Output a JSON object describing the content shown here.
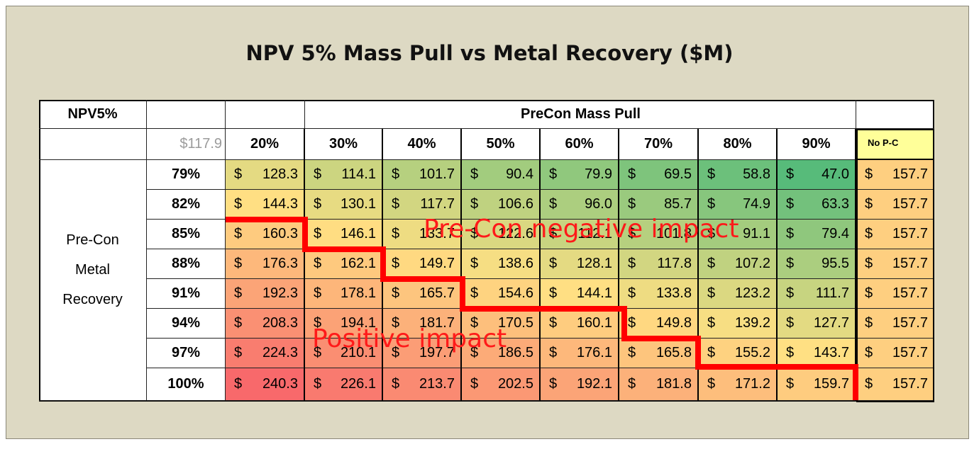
{
  "title": "NPV 5% Mass Pull vs Metal Recovery ($M)",
  "chart_data": {
    "type": "table",
    "corner_label": "NPV5%",
    "column_group_label": "PreCon Mass Pull",
    "baseline_value": "$117.9",
    "row_axis_label": [
      "Pre-Con",
      "Metal",
      "Recovery"
    ],
    "columns": [
      "20%",
      "30%",
      "40%",
      "50%",
      "60%",
      "70%",
      "80%",
      "90%"
    ],
    "no_precon_label": "No P-C",
    "rows": [
      {
        "label": "79%",
        "values": [
          "128.3",
          "114.1",
          "101.7",
          "90.4",
          "79.9",
          "69.5",
          "58.8",
          "47.0"
        ],
        "nopc": "157.7"
      },
      {
        "label": "82%",
        "values": [
          "144.3",
          "130.1",
          "117.7",
          "106.6",
          "96.0",
          "85.7",
          "74.9",
          "63.3"
        ],
        "nopc": "157.7"
      },
      {
        "label": "85%",
        "values": [
          "160.3",
          "146.1",
          "133.7",
          "122.6",
          "112.1",
          "101.8",
          "91.1",
          "79.4"
        ],
        "nopc": "157.7"
      },
      {
        "label": "88%",
        "values": [
          "176.3",
          "162.1",
          "149.7",
          "138.6",
          "128.1",
          "117.8",
          "107.2",
          "95.5"
        ],
        "nopc": "157.7"
      },
      {
        "label": "91%",
        "values": [
          "192.3",
          "178.1",
          "165.7",
          "154.6",
          "144.1",
          "133.8",
          "123.2",
          "111.7"
        ],
        "nopc": "157.7"
      },
      {
        "label": "94%",
        "values": [
          "208.3",
          "194.1",
          "181.7",
          "170.5",
          "160.1",
          "149.8",
          "139.2",
          "127.7"
        ],
        "nopc": "157.7"
      },
      {
        "label": "97%",
        "values": [
          "224.3",
          "210.1",
          "197.7",
          "186.5",
          "176.1",
          "165.8",
          "155.2",
          "143.7"
        ],
        "nopc": "157.7"
      },
      {
        "label": "100%",
        "values": [
          "240.3",
          "226.1",
          "213.7",
          "202.5",
          "192.1",
          "181.8",
          "171.2",
          "159.7"
        ],
        "nopc": "157.7"
      }
    ],
    "currency_symbol": "$",
    "annotations": [
      "Pre-Con negative impact",
      "Positive impact"
    ],
    "color_scale": {
      "low": "#57bb7a",
      "mid": "#ffe083",
      "high": "#f8696b"
    }
  }
}
